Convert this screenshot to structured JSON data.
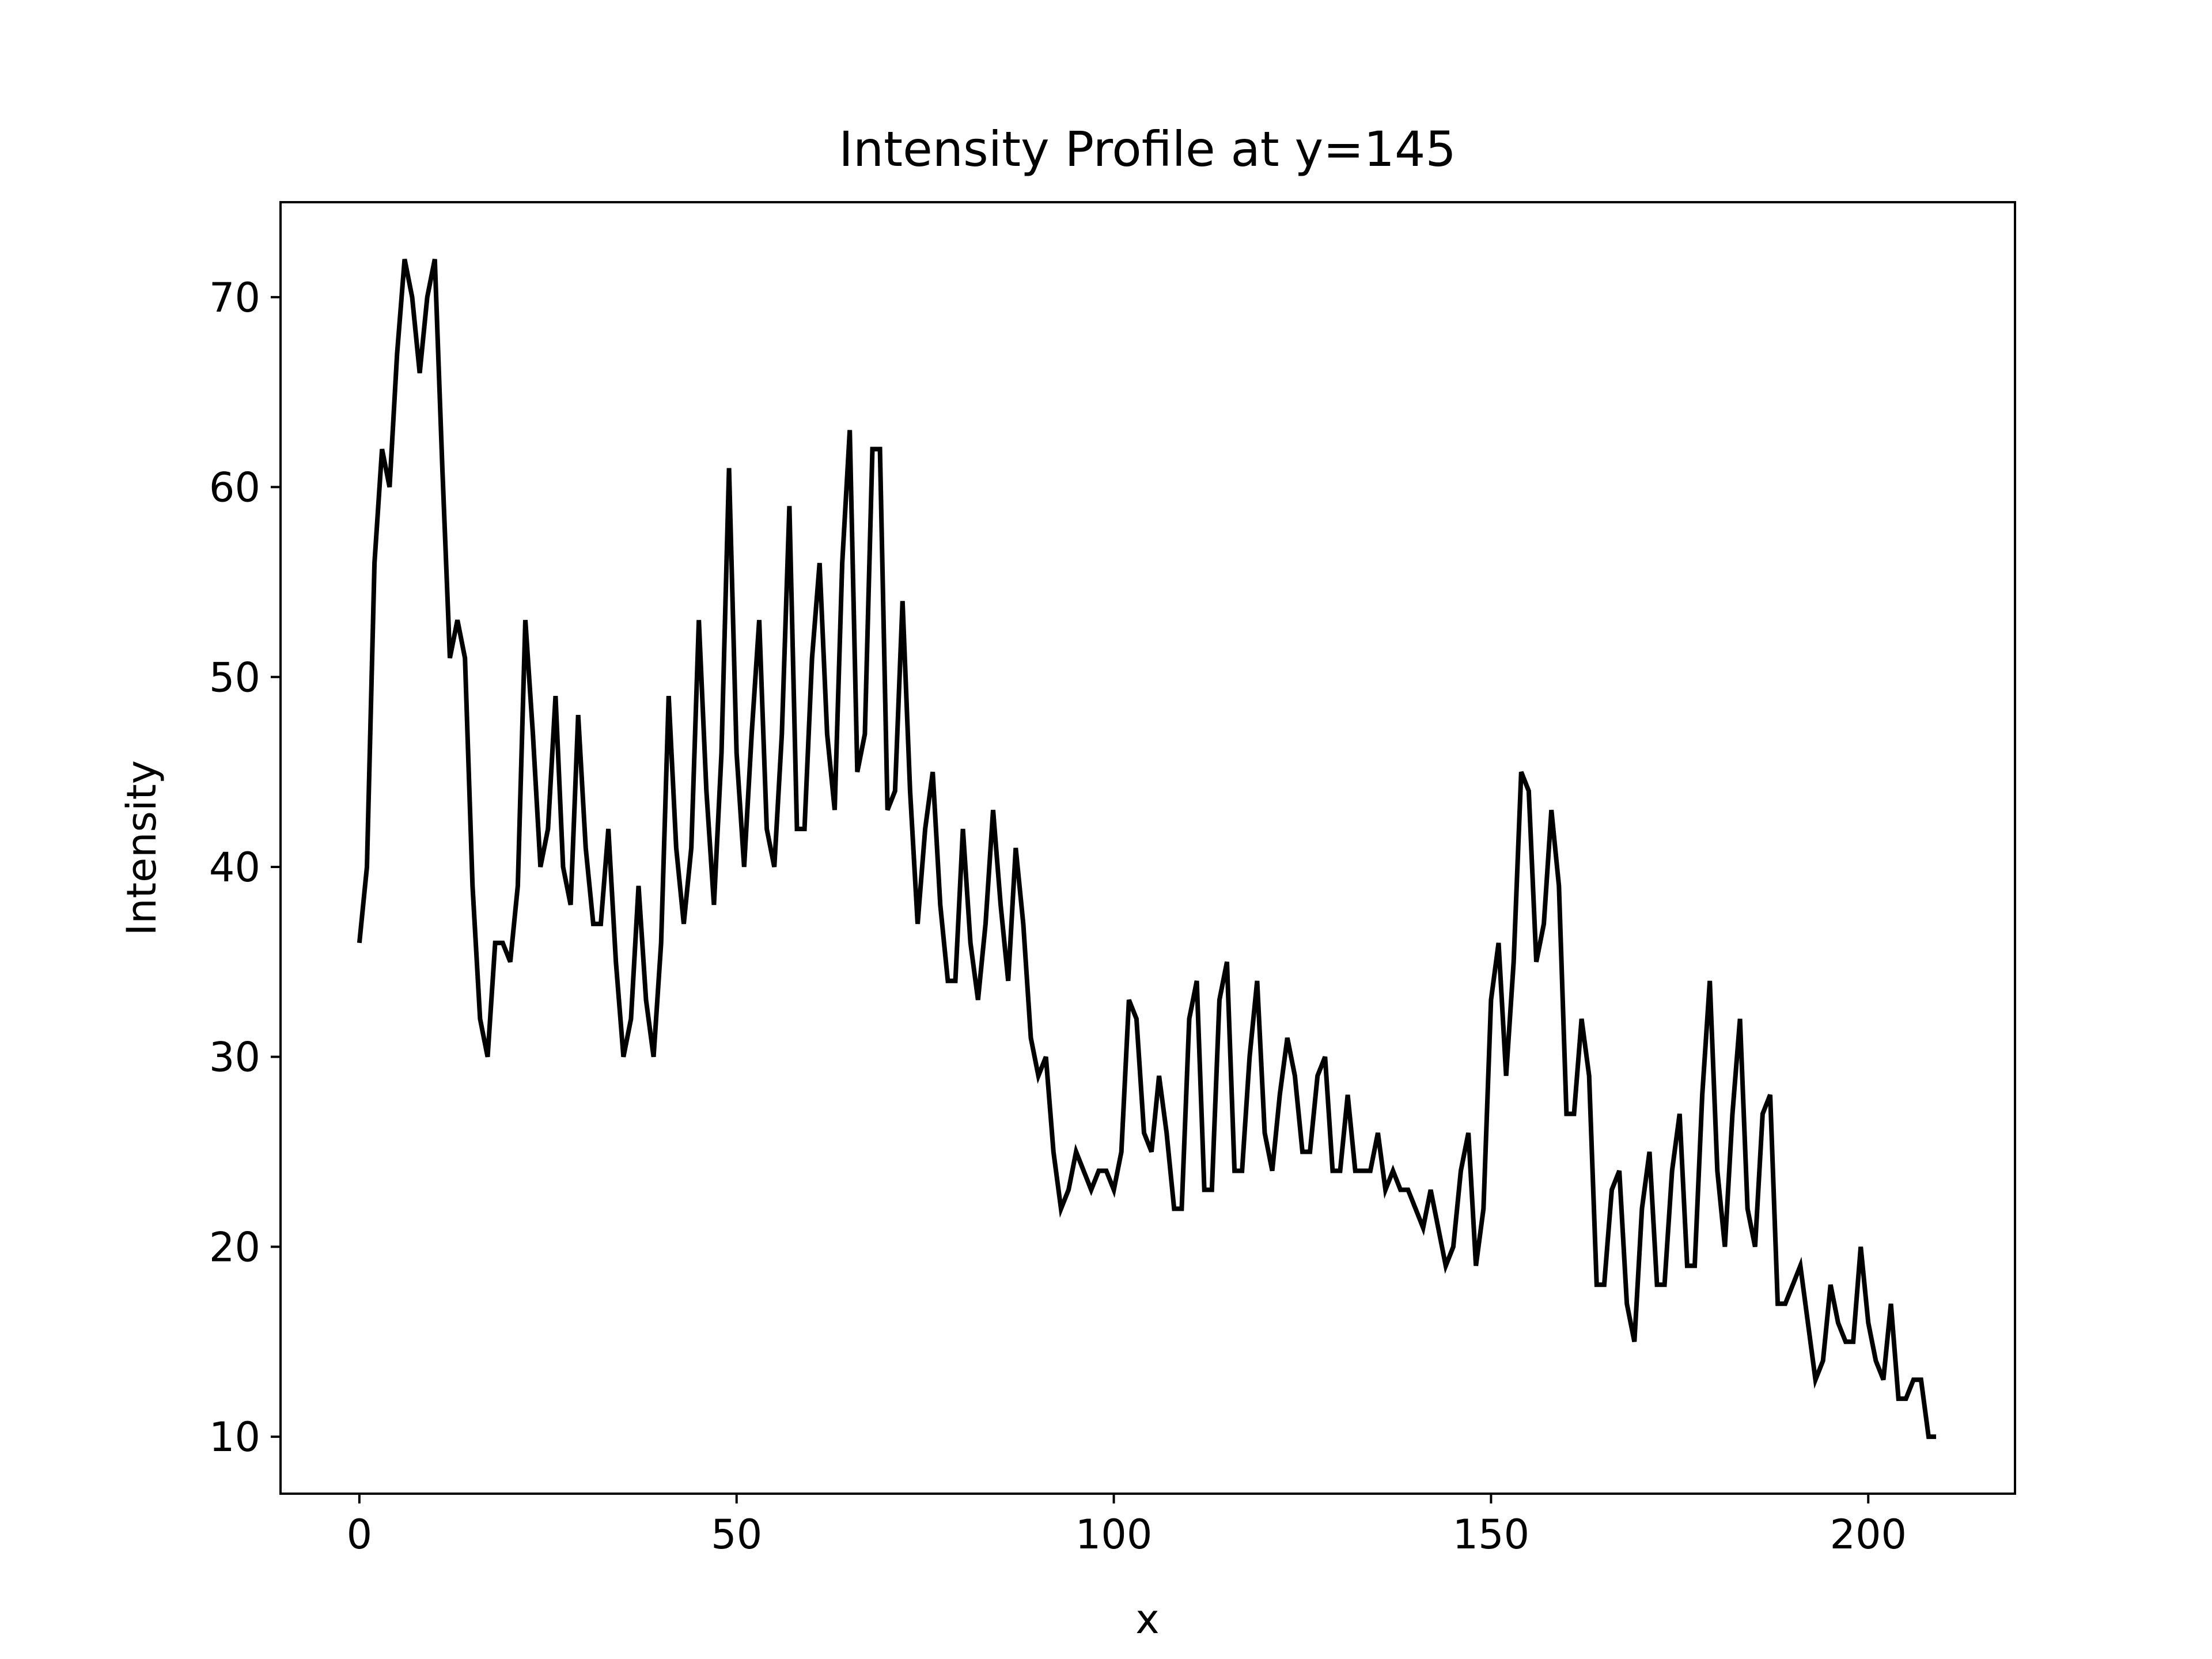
{
  "chart_data": {
    "type": "line",
    "title": "Intensity Profile at y=145",
    "xlabel": "x",
    "ylabel": "Intensity",
    "xlim": [
      -10.45,
      219.45
    ],
    "ylim": [
      7.0,
      75.0
    ],
    "xticks": [
      0,
      50,
      100,
      150,
      200
    ],
    "yticks": [
      10,
      20,
      30,
      40,
      50,
      60,
      70
    ],
    "grid": false,
    "line_color": "#000000",
    "series": [
      {
        "values": [
          36,
          40,
          56,
          62,
          60,
          67,
          72,
          70,
          66,
          70,
          72,
          61,
          51,
          53,
          51,
          39,
          32,
          30,
          36,
          36,
          35,
          39,
          53,
          47,
          40,
          42,
          49,
          40,
          38,
          48,
          41,
          37,
          37,
          42,
          35,
          30,
          32,
          39,
          33,
          30,
          36,
          49,
          41,
          37,
          41,
          53,
          44,
          38,
          46,
          61,
          46,
          40,
          47,
          53,
          42,
          40,
          47,
          59,
          42,
          42,
          51,
          56,
          47,
          43,
          56,
          63,
          45,
          47,
          62,
          62,
          43,
          44,
          54,
          44,
          37,
          42,
          45,
          38,
          34,
          34,
          42,
          36,
          33,
          37,
          43,
          38,
          34,
          41,
          37,
          31,
          29,
          30,
          25,
          22,
          23,
          25,
          24,
          23,
          24,
          24,
          23,
          25,
          33,
          32,
          26,
          25,
          29,
          26,
          22,
          22,
          32,
          34,
          23,
          23,
          33,
          35,
          24,
          24,
          30,
          34,
          26,
          24,
          28,
          31,
          29,
          25,
          25,
          29,
          30,
          24,
          24,
          28,
          24,
          24,
          24,
          26,
          23,
          24,
          23,
          23,
          22,
          21,
          23,
          21,
          19,
          20,
          24,
          26,
          19,
          22,
          33,
          36,
          29,
          35,
          45,
          44,
          35,
          37,
          43,
          39,
          27,
          27,
          32,
          29,
          18,
          18,
          23,
          24,
          17,
          15,
          22,
          25,
          18,
          18,
          24,
          27,
          19,
          19,
          28,
          34,
          24,
          20,
          27,
          32,
          22,
          20,
          27,
          28,
          17,
          17,
          18,
          19,
          16,
          13,
          14,
          18,
          16,
          15,
          15,
          20,
          16,
          14,
          13,
          17,
          12,
          12,
          13,
          13,
          10,
          10
        ]
      }
    ]
  }
}
